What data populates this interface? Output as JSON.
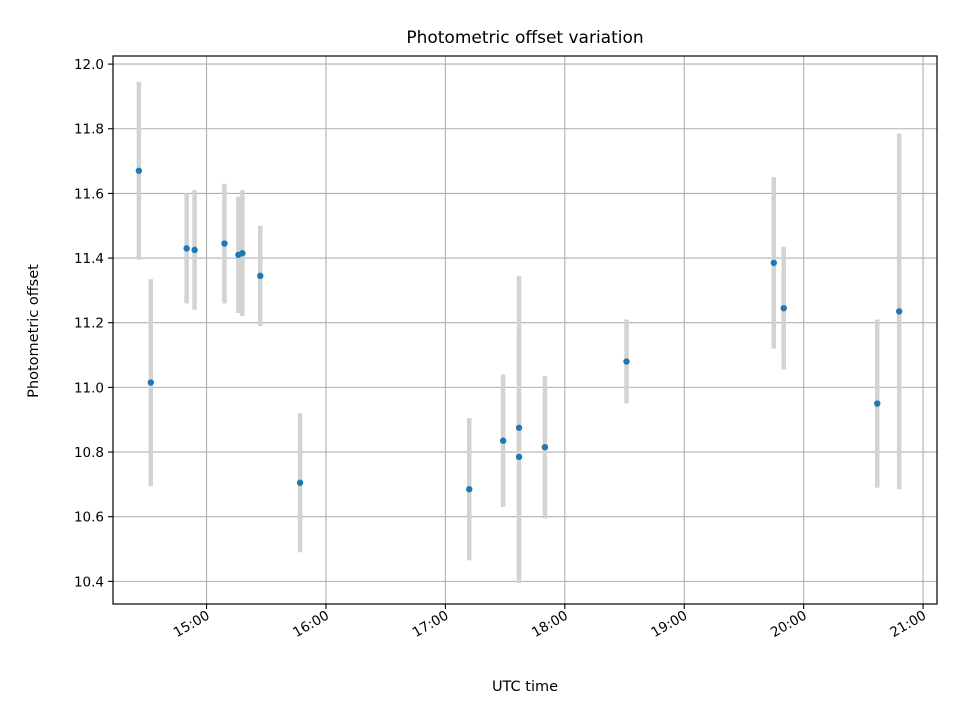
{
  "chart_data": {
    "type": "scatter",
    "title": "Photometric offset variation",
    "xlabel": "UTC time",
    "ylabel": "Photometric offset",
    "grid": true,
    "xlim": [
      "14:13",
      "21:07"
    ],
    "ylim": [
      10.33,
      12.025
    ],
    "x_ticks": [
      "15:00",
      "16:00",
      "17:00",
      "18:00",
      "19:00",
      "20:00",
      "21:00"
    ],
    "y_ticks": [
      10.4,
      10.6,
      10.8,
      11.0,
      11.2,
      11.4,
      11.6,
      11.8,
      12.0
    ],
    "y_tick_labels": [
      "10.4",
      "10.6",
      "10.8",
      "11.0",
      "11.2",
      "11.4",
      "11.6",
      "11.8",
      "12.0"
    ],
    "colors": {
      "point": "#1f77b4",
      "errorbar": "#d3d3d3",
      "grid": "#b0b0b0"
    },
    "points": [
      {
        "x": "14:26",
        "y": 11.67,
        "err": 0.275
      },
      {
        "x": "14:32",
        "y": 11.015,
        "err": 0.32
      },
      {
        "x": "14:50",
        "y": 11.43,
        "err": 0.17
      },
      {
        "x": "14:54",
        "y": 11.425,
        "err": 0.185
      },
      {
        "x": "15:09",
        "y": 11.445,
        "err": 0.185
      },
      {
        "x": "15:16",
        "y": 11.41,
        "err": 0.18
      },
      {
        "x": "15:18",
        "y": 11.415,
        "err": 0.195
      },
      {
        "x": "15:27",
        "y": 11.345,
        "err": 0.155
      },
      {
        "x": "15:47",
        "y": 10.705,
        "err": 0.215
      },
      {
        "x": "17:12",
        "y": 10.685,
        "err": 0.22
      },
      {
        "x": "17:29",
        "y": 10.835,
        "err": 0.205
      },
      {
        "x": "17:37",
        "y": 10.785,
        "err": 0.39
      },
      {
        "x": "17:37",
        "y": 10.875,
        "err": 0.47
      },
      {
        "x": "17:50",
        "y": 10.815,
        "err": 0.22
      },
      {
        "x": "18:31",
        "y": 11.08,
        "err": 0.13
      },
      {
        "x": "19:45",
        "y": 11.385,
        "err": 0.265
      },
      {
        "x": "19:50",
        "y": 11.245,
        "err": 0.19
      },
      {
        "x": "20:37",
        "y": 10.95,
        "err": 0.26
      },
      {
        "x": "20:48",
        "y": 11.235,
        "err": 0.55
      }
    ]
  }
}
